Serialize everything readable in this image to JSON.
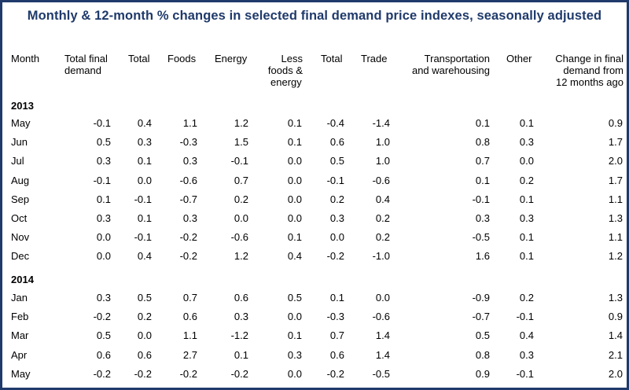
{
  "title": "Monthly & 12-month % changes in selected final demand price indexes, seasonally adjusted",
  "headers": {
    "month": "Month",
    "total_final_demand": [
      "Total final",
      "demand"
    ],
    "total": "Total",
    "foods": "Foods",
    "energy": "Energy",
    "less_foods_energy": [
      "Less",
      "foods &",
      "energy"
    ],
    "total2": "Total",
    "trade": "Trade",
    "transportation": [
      "Transportation",
      "and warehousing"
    ],
    "other": "Other",
    "change": [
      "Change in final",
      "demand from",
      "12 months ago"
    ]
  },
  "groups": [
    {
      "year": "2013",
      "rows": [
        {
          "month": "May",
          "values": [
            "-0.1",
            "0.4",
            "1.1",
            "1.2",
            "0.1",
            "-0.4",
            "-1.4",
            "0.1",
            "0.1",
            "0.9"
          ]
        },
        {
          "month": "Jun",
          "values": [
            "0.5",
            "0.3",
            "-0.3",
            "1.5",
            "0.1",
            "0.6",
            "1.0",
            "0.8",
            "0.3",
            "1.7"
          ]
        },
        {
          "month": "Jul",
          "values": [
            "0.3",
            "0.1",
            "0.3",
            "-0.1",
            "0.0",
            "0.5",
            "1.0",
            "0.7",
            "0.0",
            "2.0"
          ]
        },
        {
          "month": "Aug",
          "values": [
            "-0.1",
            "0.0",
            "-0.6",
            "0.7",
            "0.0",
            "-0.1",
            "-0.6",
            "0.1",
            "0.2",
            "1.7"
          ]
        },
        {
          "month": "Sep",
          "values": [
            "0.1",
            "-0.1",
            "-0.7",
            "0.2",
            "0.0",
            "0.2",
            "0.4",
            "-0.1",
            "0.1",
            "1.1"
          ]
        },
        {
          "month": "Oct",
          "values": [
            "0.3",
            "0.1",
            "0.3",
            "0.0",
            "0.0",
            "0.3",
            "0.2",
            "0.3",
            "0.3",
            "1.3"
          ]
        },
        {
          "month": "Nov",
          "values": [
            "0.0",
            "-0.1",
            "-0.2",
            "-0.6",
            "0.1",
            "0.0",
            "0.2",
            "-0.5",
            "0.1",
            "1.1"
          ]
        },
        {
          "month": "Dec",
          "values": [
            "0.0",
            "0.4",
            "-0.2",
            "1.2",
            "0.4",
            "-0.2",
            "-1.0",
            "1.6",
            "0.1",
            "1.2"
          ]
        }
      ]
    },
    {
      "year": "2014",
      "rows": [
        {
          "month": "Jan",
          "values": [
            "0.3",
            "0.5",
            "0.7",
            "0.6",
            "0.5",
            "0.1",
            "0.0",
            "-0.9",
            "0.2",
            "1.3"
          ]
        },
        {
          "month": "Feb",
          "values": [
            "-0.2",
            "0.2",
            "0.6",
            "0.3",
            "0.0",
            "-0.3",
            "-0.6",
            "-0.7",
            "-0.1",
            "0.9"
          ]
        },
        {
          "month": "Mar",
          "values": [
            "0.5",
            "0.0",
            "1.1",
            "-1.2",
            "0.1",
            "0.7",
            "1.4",
            "0.5",
            "0.4",
            "1.4"
          ]
        },
        {
          "month": "Apr",
          "values": [
            "0.6",
            "0.6",
            "2.7",
            "0.1",
            "0.3",
            "0.6",
            "1.4",
            "0.8",
            "0.3",
            "2.1"
          ]
        },
        {
          "month": "May",
          "values": [
            "-0.2",
            "-0.2",
            "-0.2",
            "-0.2",
            "0.0",
            "-0.2",
            "-0.5",
            "0.9",
            "-0.1",
            "2.0"
          ]
        }
      ]
    }
  ],
  "colors": {
    "title": "#1f3a6b",
    "border": "#1f3a6b"
  }
}
